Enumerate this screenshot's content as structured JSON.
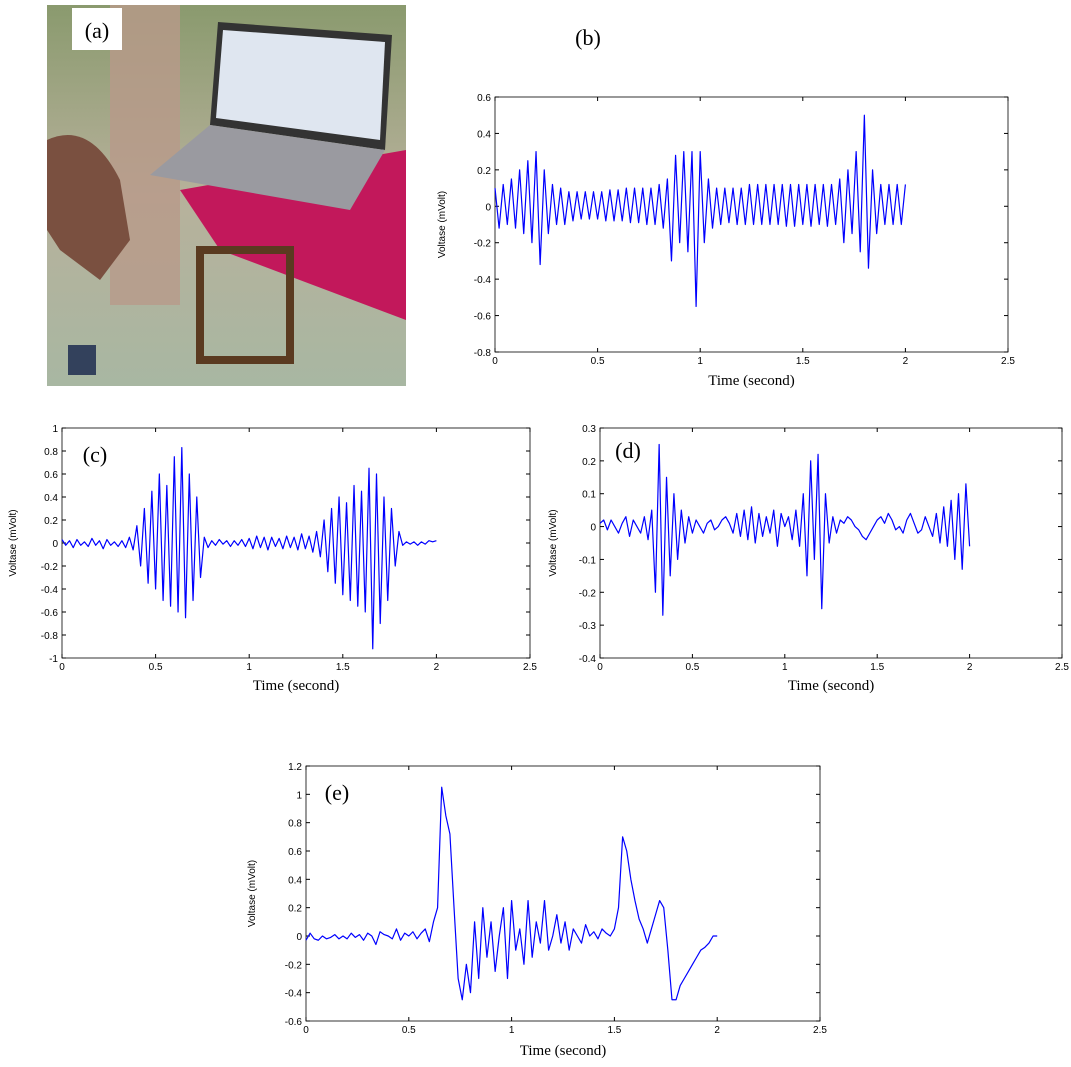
{
  "photo": {
    "label": "(a)"
  },
  "chart_data": [
    {
      "type": "line",
      "panel_label": "(b)",
      "xlabel": "Time (second)",
      "ylabel": "Voltase (mVolt)",
      "color": "#0000ff",
      "xlim": [
        0,
        2.5
      ],
      "xticks": [
        0,
        0.5,
        1,
        1.5,
        2,
        2.5
      ],
      "ylim": [
        -0.8,
        0.6
      ],
      "yticks": [
        -0.8,
        -0.6,
        -0.4,
        -0.2,
        0,
        0.2,
        0.4,
        0.6
      ],
      "x": [
        0,
        0.02,
        0.04,
        0.06,
        0.08,
        0.1,
        0.12,
        0.14,
        0.16,
        0.18,
        0.2,
        0.22,
        0.24,
        0.26,
        0.28,
        0.3,
        0.32,
        0.34,
        0.36,
        0.38,
        0.4,
        0.42,
        0.44,
        0.46,
        0.48,
        0.5,
        0.52,
        0.54,
        0.56,
        0.58,
        0.6,
        0.62,
        0.64,
        0.66,
        0.68,
        0.7,
        0.72,
        0.74,
        0.76,
        0.78,
        0.8,
        0.82,
        0.84,
        0.86,
        0.88,
        0.9,
        0.92,
        0.94,
        0.96,
        0.98,
        1,
        1.02,
        1.04,
        1.06,
        1.08,
        1.1,
        1.12,
        1.14,
        1.16,
        1.18,
        1.2,
        1.22,
        1.24,
        1.26,
        1.28,
        1.3,
        1.32,
        1.34,
        1.36,
        1.38,
        1.4,
        1.42,
        1.44,
        1.46,
        1.48,
        1.5,
        1.52,
        1.54,
        1.56,
        1.58,
        1.6,
        1.62,
        1.64,
        1.66,
        1.68,
        1.7,
        1.72,
        1.74,
        1.76,
        1.78,
        1.8,
        1.82,
        1.84,
        1.86,
        1.88,
        1.9,
        1.92,
        1.94,
        1.96,
        1.98,
        2
      ],
      "values": [
        0.1,
        -0.12,
        0.12,
        -0.1,
        0.15,
        -0.12,
        0.2,
        -0.15,
        0.25,
        -0.2,
        0.3,
        -0.32,
        0.2,
        -0.15,
        0.12,
        -0.1,
        0.1,
        -0.1,
        0.08,
        -0.08,
        0.08,
        -0.07,
        0.08,
        -0.07,
        0.08,
        -0.07,
        0.08,
        -0.08,
        0.09,
        -0.08,
        0.09,
        -0.08,
        0.1,
        -0.09,
        0.1,
        -0.09,
        0.1,
        -0.1,
        0.1,
        -0.1,
        0.12,
        -0.12,
        0.15,
        -0.3,
        0.28,
        -0.2,
        0.3,
        -0.25,
        0.3,
        -0.55,
        0.3,
        -0.2,
        0.15,
        -0.12,
        0.1,
        -0.1,
        0.1,
        -0.09,
        0.1,
        -0.1,
        0.1,
        -0.1,
        0.12,
        -0.1,
        0.12,
        -0.1,
        0.12,
        -0.1,
        0.12,
        -0.1,
        0.12,
        -0.11,
        0.12,
        -0.11,
        0.12,
        -0.1,
        0.12,
        -0.11,
        0.12,
        -0.1,
        0.12,
        -0.11,
        0.12,
        -0.1,
        0.15,
        -0.2,
        0.2,
        -0.15,
        0.3,
        -0.25,
        0.5,
        -0.34,
        0.2,
        -0.15,
        0.12,
        -0.1,
        0.12,
        -0.1,
        0.12,
        -0.1,
        0.12
      ]
    },
    {
      "type": "line",
      "panel_label": "(c)",
      "xlabel": "Time (second)",
      "ylabel": "Voltase (mVolt)",
      "color": "#0000ff",
      "xlim": [
        0,
        2.5
      ],
      "xticks": [
        0,
        0.5,
        1,
        1.5,
        2,
        2.5
      ],
      "ylim": [
        -1,
        1
      ],
      "yticks": [
        -1,
        -0.8,
        -0.6,
        -0.4,
        -0.2,
        0,
        0.2,
        0.4,
        0.6,
        0.8,
        1
      ],
      "x": [
        0,
        0.02,
        0.04,
        0.06,
        0.08,
        0.1,
        0.12,
        0.14,
        0.16,
        0.18,
        0.2,
        0.22,
        0.24,
        0.26,
        0.28,
        0.3,
        0.32,
        0.34,
        0.36,
        0.38,
        0.4,
        0.42,
        0.44,
        0.46,
        0.48,
        0.5,
        0.52,
        0.54,
        0.56,
        0.58,
        0.6,
        0.62,
        0.64,
        0.66,
        0.68,
        0.7,
        0.72,
        0.74,
        0.76,
        0.78,
        0.8,
        0.82,
        0.84,
        0.86,
        0.88,
        0.9,
        0.92,
        0.94,
        0.96,
        0.98,
        1,
        1.02,
        1.04,
        1.06,
        1.08,
        1.1,
        1.12,
        1.14,
        1.16,
        1.18,
        1.2,
        1.22,
        1.24,
        1.26,
        1.28,
        1.3,
        1.32,
        1.34,
        1.36,
        1.38,
        1.4,
        1.42,
        1.44,
        1.46,
        1.48,
        1.5,
        1.52,
        1.54,
        1.56,
        1.58,
        1.6,
        1.62,
        1.64,
        1.66,
        1.68,
        1.7,
        1.72,
        1.74,
        1.76,
        1.78,
        1.8,
        1.82,
        1.84,
        1.86,
        1.88,
        1.9,
        1.92,
        1.94,
        1.96,
        1.98,
        2
      ],
      "values": [
        0.03,
        -0.02,
        0.02,
        -0.04,
        0.03,
        -0.02,
        0.01,
        -0.03,
        0.04,
        -0.02,
        0.02,
        -0.05,
        0.03,
        -0.02,
        0.01,
        -0.03,
        0.02,
        -0.04,
        0.05,
        -0.06,
        0.15,
        -0.2,
        0.3,
        -0.35,
        0.45,
        -0.4,
        0.6,
        -0.5,
        0.5,
        -0.55,
        0.75,
        -0.6,
        0.83,
        -0.65,
        0.6,
        -0.5,
        0.4,
        -0.3,
        0.05,
        -0.04,
        0.02,
        -0.02,
        0.03,
        -0.01,
        0.02,
        -0.03,
        0.02,
        -0.02,
        0.03,
        -0.03,
        0.04,
        -0.05,
        0.06,
        -0.04,
        0.05,
        -0.06,
        0.05,
        -0.03,
        0.04,
        -0.05,
        0.06,
        -0.04,
        0.05,
        -0.06,
        0.08,
        -0.05,
        0.06,
        -0.08,
        0.1,
        -0.12,
        0.2,
        -0.25,
        0.3,
        -0.35,
        0.4,
        -0.45,
        0.35,
        -0.5,
        0.5,
        -0.55,
        0.45,
        -0.6,
        0.65,
        -0.92,
        0.6,
        -0.7,
        0.4,
        -0.5,
        0.3,
        -0.2,
        0.1,
        -0.02,
        0.01,
        -0.01,
        0.01,
        -0.02,
        0.01,
        -0.01,
        0.02,
        0.01,
        0.02
      ]
    },
    {
      "type": "line",
      "panel_label": "(d)",
      "xlabel": "Time (second)",
      "ylabel": "Voltase (mVolt)",
      "color": "#0000ff",
      "xlim": [
        0,
        2.5
      ],
      "xticks": [
        0,
        0.5,
        1,
        1.5,
        2,
        2.5
      ],
      "ylim": [
        -0.4,
        0.3
      ],
      "yticks": [
        -0.4,
        -0.3,
        -0.2,
        -0.1,
        0,
        0.1,
        0.2,
        0.3
      ],
      "x": [
        0,
        0.02,
        0.04,
        0.06,
        0.08,
        0.1,
        0.12,
        0.14,
        0.16,
        0.18,
        0.2,
        0.22,
        0.24,
        0.26,
        0.28,
        0.3,
        0.32,
        0.34,
        0.36,
        0.38,
        0.4,
        0.42,
        0.44,
        0.46,
        0.48,
        0.5,
        0.52,
        0.54,
        0.56,
        0.58,
        0.6,
        0.62,
        0.64,
        0.66,
        0.68,
        0.7,
        0.72,
        0.74,
        0.76,
        0.78,
        0.8,
        0.82,
        0.84,
        0.86,
        0.88,
        0.9,
        0.92,
        0.94,
        0.96,
        0.98,
        1,
        1.02,
        1.04,
        1.06,
        1.08,
        1.1,
        1.12,
        1.14,
        1.16,
        1.18,
        1.2,
        1.22,
        1.24,
        1.26,
        1.28,
        1.3,
        1.32,
        1.34,
        1.36,
        1.38,
        1.4,
        1.42,
        1.44,
        1.46,
        1.48,
        1.5,
        1.52,
        1.54,
        1.56,
        1.58,
        1.6,
        1.62,
        1.64,
        1.66,
        1.68,
        1.7,
        1.72,
        1.74,
        1.76,
        1.78,
        1.8,
        1.82,
        1.84,
        1.86,
        1.88,
        1.9,
        1.92,
        1.94,
        1.96,
        1.98,
        2
      ],
      "values": [
        0.01,
        0.02,
        -0.01,
        0.02,
        0.0,
        -0.02,
        0.01,
        0.03,
        -0.03,
        0.02,
        0.0,
        -0.02,
        0.03,
        -0.04,
        0.05,
        -0.2,
        0.25,
        -0.27,
        0.15,
        -0.15,
        0.1,
        -0.1,
        0.05,
        -0.05,
        0.03,
        -0.02,
        0.02,
        0.0,
        -0.02,
        0.01,
        0.02,
        -0.01,
        0.0,
        0.02,
        0.03,
        0.01,
        -0.02,
        0.04,
        -0.03,
        0.05,
        -0.04,
        0.06,
        -0.05,
        0.04,
        -0.03,
        0.03,
        -0.02,
        0.05,
        -0.06,
        0.04,
        0.0,
        0.03,
        -0.04,
        0.05,
        -0.06,
        0.1,
        -0.15,
        0.2,
        -0.1,
        0.22,
        -0.25,
        0.1,
        -0.05,
        0.03,
        -0.02,
        0.02,
        0.01,
        0.03,
        0.02,
        0.0,
        -0.01,
        -0.03,
        -0.04,
        -0.02,
        0.0,
        0.02,
        0.03,
        0.01,
        0.04,
        0.02,
        -0.01,
        0.0,
        -0.02,
        0.02,
        0.04,
        0.01,
        -0.02,
        -0.01,
        0.03,
        0.0,
        -0.03,
        0.04,
        -0.05,
        0.06,
        -0.06,
        0.08,
        -0.1,
        0.1,
        -0.13,
        0.13,
        -0.06
      ]
    },
    {
      "type": "line",
      "panel_label": "(e)",
      "xlabel": "Time (second)",
      "ylabel": "Voltase (mVolt)",
      "color": "#0000ff",
      "xlim": [
        0,
        2.5
      ],
      "xticks": [
        0,
        0.5,
        1,
        1.5,
        2,
        2.5
      ],
      "ylim": [
        -0.6,
        1.2
      ],
      "yticks": [
        -0.6,
        -0.4,
        -0.2,
        0,
        0.2,
        0.4,
        0.6,
        0.8,
        1,
        1.2
      ],
      "x": [
        0,
        0.02,
        0.04,
        0.06,
        0.08,
        0.1,
        0.12,
        0.14,
        0.16,
        0.18,
        0.2,
        0.22,
        0.24,
        0.26,
        0.28,
        0.3,
        0.32,
        0.34,
        0.36,
        0.38,
        0.4,
        0.42,
        0.44,
        0.46,
        0.48,
        0.5,
        0.52,
        0.54,
        0.56,
        0.58,
        0.6,
        0.62,
        0.64,
        0.66,
        0.68,
        0.7,
        0.72,
        0.74,
        0.76,
        0.78,
        0.8,
        0.82,
        0.84,
        0.86,
        0.88,
        0.9,
        0.92,
        0.94,
        0.96,
        0.98,
        1,
        1.02,
        1.04,
        1.06,
        1.08,
        1.1,
        1.12,
        1.14,
        1.16,
        1.18,
        1.2,
        1.22,
        1.24,
        1.26,
        1.28,
        1.3,
        1.32,
        1.34,
        1.36,
        1.38,
        1.4,
        1.42,
        1.44,
        1.46,
        1.48,
        1.5,
        1.52,
        1.54,
        1.56,
        1.58,
        1.6,
        1.62,
        1.64,
        1.66,
        1.68,
        1.7,
        1.72,
        1.74,
        1.76,
        1.78,
        1.8,
        1.82,
        1.84,
        1.86,
        1.88,
        1.9,
        1.92,
        1.94,
        1.96,
        1.98,
        2
      ],
      "values": [
        -0.03,
        0.02,
        -0.02,
        -0.03,
        0.0,
        -0.02,
        -0.01,
        0.01,
        -0.02,
        0.0,
        -0.02,
        0.02,
        -0.01,
        0.01,
        -0.03,
        0.02,
        0.0,
        -0.06,
        0.03,
        0.01,
        0.0,
        -0.02,
        0.05,
        -0.03,
        0.02,
        0.0,
        0.03,
        -0.02,
        0.02,
        0.05,
        -0.04,
        0.1,
        0.2,
        1.05,
        0.85,
        0.72,
        0.2,
        -0.3,
        -0.45,
        -0.2,
        -0.4,
        0.1,
        -0.3,
        0.2,
        -0.15,
        0.1,
        -0.25,
        0.0,
        0.2,
        -0.3,
        0.25,
        -0.1,
        0.05,
        -0.2,
        0.25,
        -0.15,
        0.1,
        -0.05,
        0.25,
        -0.1,
        0.0,
        0.15,
        -0.05,
        0.1,
        -0.1,
        0.05,
        0.0,
        -0.05,
        0.08,
        0.0,
        0.03,
        -0.02,
        0.05,
        0.02,
        0.0,
        0.05,
        0.2,
        0.7,
        0.6,
        0.4,
        0.25,
        0.12,
        0.05,
        -0.05,
        0.05,
        0.15,
        0.25,
        0.2,
        -0.1,
        -0.45,
        -0.45,
        -0.35,
        -0.3,
        -0.25,
        -0.2,
        -0.15,
        -0.1,
        -0.08,
        -0.05,
        0.0,
        0.0
      ]
    }
  ]
}
